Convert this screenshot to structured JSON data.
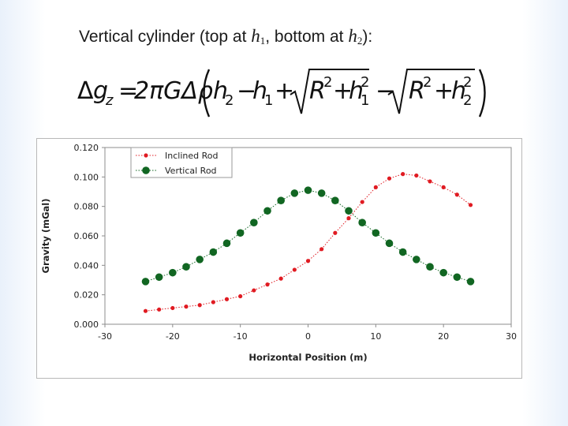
{
  "slide": {
    "heading_prefix": "Vertical cylinder (top at ",
    "heading_var1": "h",
    "heading_sub1": "1",
    "heading_mid": ", bottom at ",
    "heading_var2": "h",
    "heading_sub2": "2",
    "heading_suffix": "):",
    "formula": {
      "lhs_delta": "Δ",
      "lhs_g": "g",
      "lhs_sub": "z",
      "equals": "=",
      "coef": "2πGΔρ",
      "h2": "h",
      "h2_sub": "2",
      "minus1": "−",
      "h1": "h",
      "h1_sub": "1",
      "plus": "+",
      "R1": "R",
      "R1_exp": "2",
      "plus_inner1": "+",
      "h1b": "h",
      "h1b_sub": "1",
      "h1b_exp": "2",
      "minus2": "−",
      "R2": "R",
      "R2_exp": "2",
      "plus_inner2": "+",
      "h2b": "h",
      "h2b_sub": "2",
      "h2b_exp": "2"
    }
  },
  "chart_data": {
    "type": "line",
    "xlabel": "Horizontal Position (m)",
    "ylabel": "Gravity (mGal)",
    "xlim": [
      -30,
      30
    ],
    "ylim": [
      0,
      0.12
    ],
    "xticks": [
      "-30",
      "-20",
      "-10",
      "0",
      "10",
      "20",
      "30"
    ],
    "yticks": [
      "0.000",
      "0.020",
      "0.040",
      "0.060",
      "0.080",
      "0.100",
      "0.120"
    ],
    "grid": false,
    "legend_position": "top-left",
    "series": [
      {
        "name": "Inclined Rod",
        "color": "#e01b22",
        "marker": "small-circle",
        "x": [
          -24,
          -22,
          -20,
          -18,
          -16,
          -14,
          -12,
          -10,
          -8,
          -6,
          -4,
          -2,
          0,
          2,
          4,
          6,
          8,
          10,
          12,
          14,
          16,
          18,
          20,
          22,
          24
        ],
        "y": [
          0.009,
          0.01,
          0.011,
          0.012,
          0.013,
          0.015,
          0.017,
          0.019,
          0.023,
          0.027,
          0.031,
          0.037,
          0.043,
          0.051,
          0.062,
          0.072,
          0.083,
          0.093,
          0.099,
          0.102,
          0.101,
          0.097,
          0.093,
          0.088,
          0.081
        ]
      },
      {
        "name": "Vertical Rod",
        "color": "#116622",
        "marker": "large-circle",
        "x": [
          -24,
          -22,
          -20,
          -18,
          -16,
          -14,
          -12,
          -10,
          -8,
          -6,
          -4,
          -2,
          0,
          2,
          4,
          6,
          8,
          10,
          12,
          14,
          16,
          18,
          20,
          22,
          24
        ],
        "y": [
          0.029,
          0.032,
          0.035,
          0.039,
          0.044,
          0.049,
          0.055,
          0.062,
          0.069,
          0.077,
          0.084,
          0.089,
          0.091,
          0.089,
          0.084,
          0.077,
          0.069,
          0.062,
          0.055,
          0.049,
          0.044,
          0.039,
          0.035,
          0.032,
          0.029
        ]
      }
    ]
  }
}
